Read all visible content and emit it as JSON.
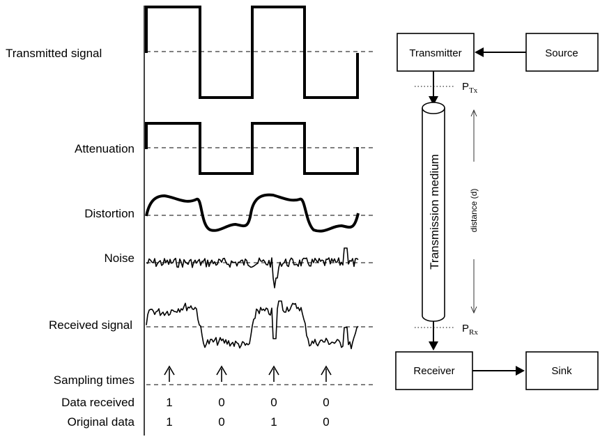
{
  "signal_labels": {
    "transmitted": "Transmitted signal",
    "attenuation": "Attenuation",
    "distortion": "Distortion",
    "noise": "Noise",
    "received": "Received signal",
    "sampling": "Sampling times",
    "data_received": "Data received",
    "original_data": "Original data"
  },
  "data_received_bits": [
    "1",
    "0",
    "0",
    "0"
  ],
  "original_data_bits": [
    "1",
    "0",
    "1",
    "0"
  ],
  "blocks": {
    "transmitter": "Transmitter",
    "source": "Source",
    "receiver": "Receiver",
    "sink": "Sink",
    "medium": "Transmission medium"
  },
  "power_tx": {
    "base": "P",
    "sub": "Tx"
  },
  "power_rx": {
    "base": "P",
    "sub": "Rx"
  },
  "distance_label": "distance (d)"
}
